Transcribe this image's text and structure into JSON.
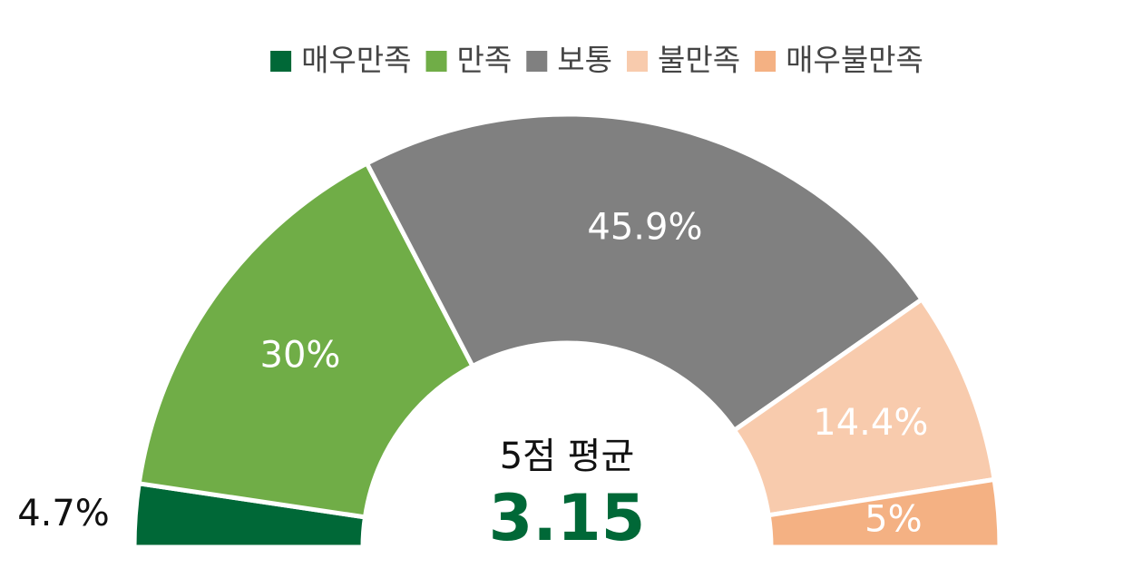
{
  "chart_data": {
    "type": "half-donut",
    "categories": [
      "매우만족",
      "만족",
      "보통",
      "불만족",
      "매우불만족"
    ],
    "values": [
      4.7,
      30,
      45.9,
      14.4,
      5
    ],
    "value_labels": [
      "4.7%",
      "30%",
      "45.9%",
      "14.4%",
      "5%"
    ],
    "colors": [
      "#006837",
      "#70ad47",
      "#808080",
      "#f8cbad",
      "#f4b183"
    ],
    "center_label": "5점 평균",
    "center_value": 3.15,
    "center_value_color": "#006837",
    "legend": "top"
  }
}
